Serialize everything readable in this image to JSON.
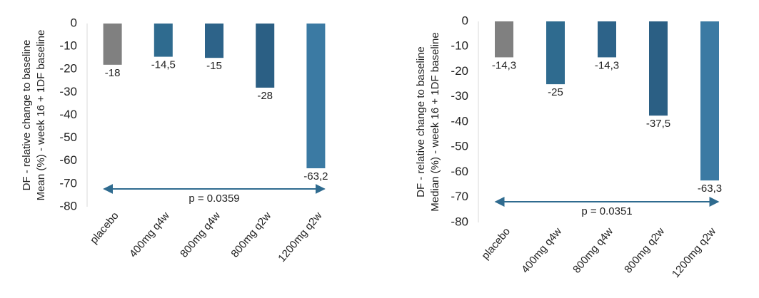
{
  "chart_data": [
    {
      "type": "bar",
      "ylabel": [
        "DF - relative change to baseline",
        "Mean (%) - week 16 + 1DF baseline"
      ],
      "categories": [
        "placebo",
        "400mg q4w",
        "800mg q4w",
        "800mg q2w",
        "1200mg q2w"
      ],
      "values": [
        -18,
        -14.5,
        -15,
        -28,
        -63.2
      ],
      "value_labels": [
        "-18",
        "-14,5",
        "-15",
        "-28",
        "-63,2"
      ],
      "colors": [
        "#808080",
        "#2f6b8f",
        "#2d6389",
        "#2b5f84",
        "#3b7aa3"
      ],
      "ylim": [
        -80,
        0
      ],
      "yticks": [
        0,
        -10,
        -20,
        -30,
        -40,
        -50,
        -60,
        -70,
        -80
      ],
      "annotation": "p = 0.0359"
    },
    {
      "type": "bar",
      "ylabel": [
        "DF - relative change to baseline",
        "Median (%) - week 16 + 1DF baseline"
      ],
      "categories": [
        "placebo",
        "400mg q4w",
        "800mg q4w",
        "800mg q2w",
        "1200mg q2w"
      ],
      "values": [
        -14.3,
        -25,
        -14.3,
        -37.5,
        -63.3
      ],
      "value_labels": [
        "-14,3",
        "-25",
        "-14,3",
        "-37,5",
        "-63,3"
      ],
      "colors": [
        "#808080",
        "#2f6b8f",
        "#2d6389",
        "#2b5f84",
        "#3b7aa3"
      ],
      "ylim": [
        -80,
        0
      ],
      "yticks": [
        0,
        -10,
        -20,
        -30,
        -40,
        -50,
        -60,
        -70,
        -80
      ],
      "annotation": "p = 0.0351"
    }
  ]
}
